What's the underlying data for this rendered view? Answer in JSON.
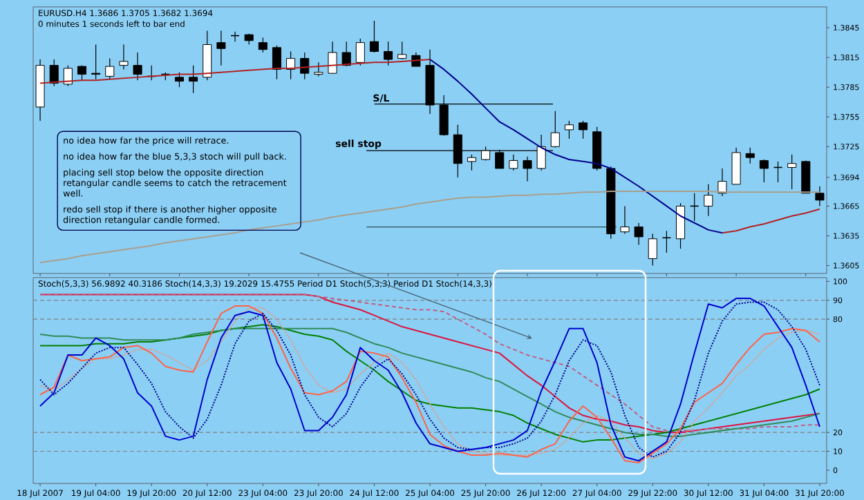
{
  "chart_data": [
    {
      "type": "candlestick",
      "title": "EURUSD.H4 1.3686 1.3705 1.3682 1.3694",
      "subtitle": "0 minutes 1 seconds left to bar end",
      "categories": [
        null,
        null,
        null,
        null,
        null,
        null,
        null,
        null,
        null,
        null,
        null,
        null,
        null,
        null,
        null,
        null,
        null,
        null,
        null,
        null,
        null,
        null,
        null,
        null,
        null,
        null,
        null,
        null,
        null,
        null,
        null,
        null,
        null,
        null,
        null,
        null,
        null,
        null,
        null,
        null,
        null,
        null,
        null,
        null,
        null,
        null,
        null,
        null,
        null,
        null,
        null,
        null,
        null,
        null,
        null,
        null,
        null
      ],
      "ohlc": [
        [
          1.3765,
          1.3813,
          1.3751,
          1.3807
        ],
        [
          1.3807,
          1.3813,
          1.3786,
          1.3789
        ],
        [
          1.3788,
          1.3807,
          1.3786,
          1.3804
        ],
        [
          1.3806,
          1.3807,
          1.3792,
          1.3798
        ],
        [
          1.3799,
          1.3828,
          1.3793,
          1.3798
        ],
        [
          1.3796,
          1.3814,
          1.3793,
          1.3806
        ],
        [
          1.3807,
          1.3828,
          1.3803,
          1.3811
        ],
        [
          1.3807,
          1.382,
          1.3792,
          1.3798
        ],
        [
          1.3796,
          1.3807,
          1.3792,
          1.3796
        ],
        [
          1.3798,
          1.38,
          1.3792,
          1.3798
        ],
        [
          1.3795,
          1.38,
          1.3785,
          1.3791
        ],
        [
          1.3795,
          1.3807,
          1.3779,
          1.3791
        ],
        [
          1.3795,
          1.3842,
          1.3792,
          1.3828
        ],
        [
          1.383,
          1.3842,
          1.3807,
          1.3824
        ],
        [
          1.3837,
          1.3841,
          1.3831,
          1.3837
        ],
        [
          1.3838,
          1.3839,
          1.3828,
          1.3832
        ],
        [
          1.383,
          1.3835,
          1.382,
          1.3823
        ],
        [
          1.3825,
          1.3827,
          1.3793,
          1.3803
        ],
        [
          1.3803,
          1.3821,
          1.3793,
          1.3814
        ],
        [
          1.3814,
          1.382,
          1.3793,
          1.3799
        ],
        [
          1.3798,
          1.381,
          1.3796,
          1.38
        ],
        [
          1.3799,
          1.3831,
          1.3799,
          1.382
        ],
        [
          1.382,
          1.3831,
          1.3806,
          1.3807
        ],
        [
          1.381,
          1.3834,
          1.3807,
          1.383
        ],
        [
          1.3831,
          1.3852,
          1.382,
          1.3821
        ],
        [
          1.3821,
          1.3831,
          1.3807,
          1.3813
        ],
        [
          1.3814,
          1.3831,
          1.3813,
          1.3818
        ],
        [
          1.3817,
          1.382,
          1.3806,
          1.3806
        ],
        [
          1.3807,
          1.3823,
          1.3758,
          1.3767
        ],
        [
          1.3767,
          1.3777,
          1.3736,
          1.3737
        ],
        [
          1.3737,
          1.3747,
          1.3694,
          1.3708
        ],
        [
          1.371,
          1.3717,
          1.3701,
          1.3714
        ],
        [
          1.3712,
          1.3725,
          1.3711,
          1.3721
        ],
        [
          1.3719,
          1.3722,
          1.3703,
          1.3703
        ],
        [
          1.3703,
          1.3717,
          1.3701,
          1.3711
        ],
        [
          1.3711,
          1.3715,
          1.369,
          1.3703
        ],
        [
          1.3703,
          1.3737,
          1.3701,
          1.3725
        ],
        [
          1.3725,
          1.3761,
          1.3724,
          1.3739
        ],
        [
          1.3742,
          1.3751,
          1.3733,
          1.3747
        ],
        [
          1.3749,
          1.3751,
          1.3733,
          1.3742
        ],
        [
          1.374,
          1.3745,
          1.3701,
          1.3703
        ],
        [
          1.3703,
          1.3705,
          1.3632,
          1.3637
        ],
        [
          1.3639,
          1.3665,
          1.3637,
          1.3644
        ],
        [
          1.3644,
          1.3648,
          1.3626,
          1.3634
        ],
        [
          1.3612,
          1.3637,
          1.3605,
          1.3632
        ],
        [
          1.3633,
          1.364,
          1.3618,
          1.3633
        ],
        [
          1.3632,
          1.3668,
          1.3622,
          1.3665
        ],
        [
          1.3665,
          1.3678,
          1.365,
          1.3665
        ],
        [
          1.3665,
          1.3687,
          1.3655,
          1.3676
        ],
        [
          1.3678,
          1.3703,
          1.3675,
          1.369
        ],
        [
          1.3687,
          1.3724,
          1.3687,
          1.3719
        ],
        [
          1.3718,
          1.3724,
          1.3708,
          1.3714
        ],
        [
          1.3711,
          1.3712,
          1.3689,
          1.3703
        ],
        [
          1.3704,
          1.371,
          1.3689,
          1.3704
        ],
        [
          1.3704,
          1.3717,
          1.3682,
          1.3708
        ],
        [
          1.371,
          1.3711,
          1.3678,
          1.3678
        ],
        [
          1.3678,
          1.3685,
          1.3665,
          1.3671
        ]
      ],
      "series": [
        {
          "type": "line",
          "color": "#b22222",
          "values": [
            1.3789,
            1.379,
            1.3791,
            1.3792,
            1.3792,
            1.3793,
            1.3794,
            1.3795,
            1.3796,
            1.3797,
            1.3798,
            1.3798,
            1.3799,
            1.38,
            1.3801,
            1.3802,
            1.3803,
            1.3804,
            1.3804,
            1.3805,
            1.3806,
            1.3807,
            1.3808,
            1.3809,
            1.381,
            1.381,
            1.3811,
            1.3812,
            1.3813,
            null,
            null,
            null,
            null,
            null,
            null,
            null,
            null,
            null,
            null,
            null,
            null,
            null,
            null,
            null,
            null,
            null,
            null,
            null,
            null,
            null,
            null,
            null,
            null,
            null,
            null,
            null,
            null
          ]
        },
        {
          "type": "line",
          "color": "#00008b",
          "values": [
            null,
            null,
            null,
            null,
            null,
            null,
            null,
            null,
            null,
            null,
            null,
            null,
            null,
            null,
            null,
            null,
            null,
            null,
            null,
            null,
            null,
            null,
            null,
            null,
            null,
            null,
            null,
            null,
            1.3813,
            1.3803,
            1.3791,
            1.3778,
            1.3764,
            1.375,
            1.3742,
            1.3733,
            1.3724,
            1.3717,
            1.3712,
            1.371,
            1.3708,
            1.3703,
            1.3694,
            1.3685,
            1.3675,
            1.3665,
            1.3655,
            1.3648,
            1.3641,
            1.3638,
            null,
            null,
            null,
            null,
            null,
            null,
            null
          ]
        },
        {
          "type": "line",
          "color": "#b22222",
          "values": [
            null,
            null,
            null,
            null,
            null,
            null,
            null,
            null,
            null,
            null,
            null,
            null,
            null,
            null,
            null,
            null,
            null,
            null,
            null,
            null,
            null,
            null,
            null,
            null,
            null,
            null,
            null,
            null,
            null,
            null,
            null,
            null,
            null,
            null,
            null,
            null,
            null,
            null,
            null,
            null,
            null,
            null,
            null,
            null,
            null,
            null,
            null,
            null,
            null,
            1.3638,
            1.364,
            1.3644,
            1.3647,
            1.3651,
            1.3655,
            1.3658,
            1.3662
          ]
        },
        {
          "type": "line",
          "color": "#a89f8c",
          "values": [
            1.3608,
            1.361,
            1.3612,
            1.3615,
            1.3617,
            1.3619,
            1.3621,
            1.3623,
            1.3625,
            1.3628,
            1.363,
            1.3632,
            1.3634,
            1.3636,
            1.3638,
            1.3641,
            1.3643,
            1.3645,
            1.3647,
            1.3649,
            1.3651,
            1.3654,
            1.3656,
            1.3658,
            1.366,
            1.3662,
            1.3664,
            1.3667,
            1.3669,
            1.3671,
            1.3673,
            1.3674,
            1.3674,
            1.3675,
            1.3676,
            1.3676,
            1.3677,
            1.3677,
            1.3678,
            1.3679,
            1.3679,
            1.368,
            1.368,
            1.368,
            1.368,
            1.368,
            1.368,
            1.368,
            1.368,
            1.3679,
            1.3679,
            1.3679,
            1.3679,
            1.3679,
            1.3679,
            1.3679,
            1.3679
          ]
        }
      ],
      "ref_lines": [
        {
          "axis": "y",
          "value": 1.3768,
          "label": "S/L",
          "color": "#000000"
        },
        {
          "axis": "y",
          "value": 1.3721,
          "label": "sell stop",
          "color": "#000000"
        },
        {
          "axis": "y",
          "value": 1.3644,
          "color": "#2f4f4f"
        }
      ],
      "annotations": [
        "no idea how far the price will retrace.",
        "no idea how far the blue 5,3,3 stoch will pull back.",
        "placing sell stop below the opposite direction retangular candle seems to catch the retracement well.",
        "redo sell stop if there is another higher opposite direction retangular candle formed."
      ],
      "ylim": [
        1.3597,
        1.3866
      ],
      "yticks": [
        1.3605,
        1.3635,
        1.3665,
        1.3694,
        1.3725,
        1.3755,
        1.3785,
        1.3815,
        1.3845
      ]
    },
    {
      "type": "line",
      "title": "Stoch(5,3,3) 56.9892 40.3186 Stoch(14,3,3) 19.2029 15.4755 Period D1 Stoch(5,3,3) Period D1 Stoch(14,3,3)",
      "categories": [
        "18 Jul 2007",
        null,
        null,
        null,
        "19 Jul 04:00",
        null,
        null,
        null,
        "19 Jul 20:00",
        null,
        null,
        null,
        "20 Jul 12:00",
        null,
        null,
        null,
        "23 Jul 04:00",
        null,
        null,
        null,
        "23 Jul 20:00",
        null,
        null,
        null,
        "24 Jul 12:00",
        null,
        null,
        null,
        "25 Jul 04:00",
        null,
        null,
        null,
        "25 Jul 20:00",
        null,
        null,
        null,
        "26 Jul 12:00",
        null,
        null,
        null,
        "27 Jul 04:00",
        null,
        null,
        null,
        "29 Jul 22:00",
        null,
        null,
        null,
        "30 Jul 12:00",
        null,
        null,
        null,
        "31 Jul 04:00",
        null,
        null,
        null,
        "31 Jul 20:00"
      ],
      "series": [
        {
          "color": "#dc143c",
          "line_style": "solid",
          "values": [
            93,
            93,
            93,
            93,
            93,
            93,
            93,
            93,
            93,
            93,
            93,
            93,
            93,
            93,
            93,
            93,
            93,
            93,
            93,
            93,
            92,
            89,
            87,
            85,
            82,
            79,
            76,
            74,
            72,
            70,
            68,
            66,
            64,
            62,
            56,
            50,
            45,
            39,
            33,
            29,
            27,
            26,
            24,
            23,
            21,
            20,
            20,
            21,
            22,
            23,
            24,
            25,
            26,
            27,
            28,
            29,
            30
          ]
        },
        {
          "color": "#c06080",
          "line_style": "dashed",
          "values": [
            93,
            93,
            93,
            93,
            93,
            93,
            93,
            93,
            93,
            93,
            93,
            93,
            93,
            93,
            93,
            93,
            93,
            93,
            93,
            93,
            92,
            91,
            90,
            89,
            88,
            87,
            86,
            85,
            85,
            84,
            80,
            76,
            72,
            67,
            64,
            61,
            59,
            57,
            55,
            50,
            45,
            40,
            35,
            29,
            23,
            21,
            21,
            21,
            22,
            22,
            22,
            22,
            23,
            23,
            23,
            24,
            24
          ]
        },
        {
          "color": "#008000",
          "line_style": "solid",
          "values": [
            66,
            66,
            66,
            66,
            67,
            67,
            67,
            68,
            68,
            69,
            70,
            71,
            72,
            74,
            75,
            76,
            77,
            76,
            74,
            72,
            71,
            69,
            63,
            58,
            53,
            47,
            42,
            37,
            35,
            34,
            33,
            33,
            32,
            31,
            29,
            25,
            22,
            19,
            17,
            15,
            16,
            16,
            17,
            18,
            19,
            20,
            22,
            24,
            26,
            28,
            30,
            32,
            34,
            36,
            38,
            40,
            43
          ]
        },
        {
          "color": "#2e8b57",
          "line_style": "solid",
          "values": [
            72,
            71,
            71,
            70,
            70,
            70,
            69,
            69,
            69,
            69,
            70,
            72,
            73,
            74,
            75,
            75,
            75,
            75,
            75,
            75,
            75,
            75,
            73,
            70,
            67,
            65,
            62,
            60,
            58,
            56,
            54,
            52,
            49,
            47,
            43,
            39,
            35,
            31,
            28,
            26,
            24,
            22,
            20,
            19,
            19,
            18,
            18,
            19,
            20,
            21,
            22,
            23,
            24,
            25,
            26,
            28,
            30
          ]
        },
        {
          "color": "#e9967a",
          "line_style": "dotted",
          "values": [
            45,
            42,
            48,
            54,
            59,
            59,
            61,
            64,
            64,
            61,
            57,
            53,
            58,
            68,
            79,
            86,
            86,
            80,
            69,
            55,
            45,
            41,
            43,
            51,
            57,
            62,
            57,
            48,
            35,
            23,
            14,
            10,
            9,
            8,
            8,
            8,
            9,
            11,
            17,
            25,
            29,
            26,
            17,
            9,
            6,
            9,
            15,
            26,
            33,
            41,
            50,
            56,
            64,
            70,
            73,
            74,
            72
          ]
        },
        {
          "color": "#ff6347",
          "line_style": "solid",
          "values": [
            40,
            44,
            61,
            58,
            59,
            60,
            65,
            66,
            62,
            55,
            53,
            52,
            68,
            83,
            87,
            87,
            83,
            70,
            54,
            41,
            40,
            42,
            47,
            63,
            62,
            60,
            49,
            36,
            19,
            13,
            10,
            8,
            8,
            9,
            8,
            7,
            11,
            14,
            26,
            34,
            28,
            17,
            5,
            4,
            9,
            14,
            22,
            36,
            41,
            46,
            56,
            65,
            72,
            73,
            75,
            74,
            68
          ]
        },
        {
          "color": "#00008b",
          "line_style": "dotted",
          "values": [
            48,
            40,
            46,
            54,
            62,
            65,
            65,
            56,
            46,
            31,
            23,
            17,
            27,
            45,
            67,
            79,
            83,
            74,
            61,
            40,
            28,
            23,
            30,
            44,
            54,
            59,
            51,
            40,
            27,
            17,
            12,
            11,
            12,
            12,
            14,
            17,
            26,
            40,
            58,
            69,
            66,
            52,
            29,
            12,
            7,
            10,
            20,
            37,
            62,
            79,
            88,
            89,
            89,
            85,
            76,
            64,
            45
          ]
        },
        {
          "color": "#0000cd",
          "line_style": "solid",
          "values": [
            34,
            41,
            61,
            61,
            70,
            66,
            59,
            41,
            34,
            18,
            16,
            18,
            48,
            70,
            82,
            84,
            82,
            57,
            43,
            21,
            21,
            28,
            40,
            65,
            58,
            53,
            41,
            25,
            14,
            12,
            10,
            11,
            12,
            14,
            16,
            21,
            42,
            58,
            75,
            75,
            57,
            24,
            7,
            5,
            10,
            15,
            35,
            62,
            88,
            86,
            91,
            91,
            87,
            76,
            65,
            45,
            23
          ]
        }
      ],
      "ref_lines": [
        {
          "axis": "y",
          "value": 10,
          "color": "#808080",
          "line_style": "dashed"
        },
        {
          "axis": "y",
          "value": 20,
          "color": "#808080",
          "line_style": "dashed"
        },
        {
          "axis": "y",
          "value": 80,
          "color": "#808080",
          "line_style": "dashed"
        },
        {
          "axis": "y",
          "value": 90,
          "color": "#808080",
          "line_style": "dashed"
        }
      ],
      "ylim": [
        -7,
        102
      ],
      "yticks": [
        0,
        10,
        20,
        80,
        90,
        100
      ]
    }
  ]
}
